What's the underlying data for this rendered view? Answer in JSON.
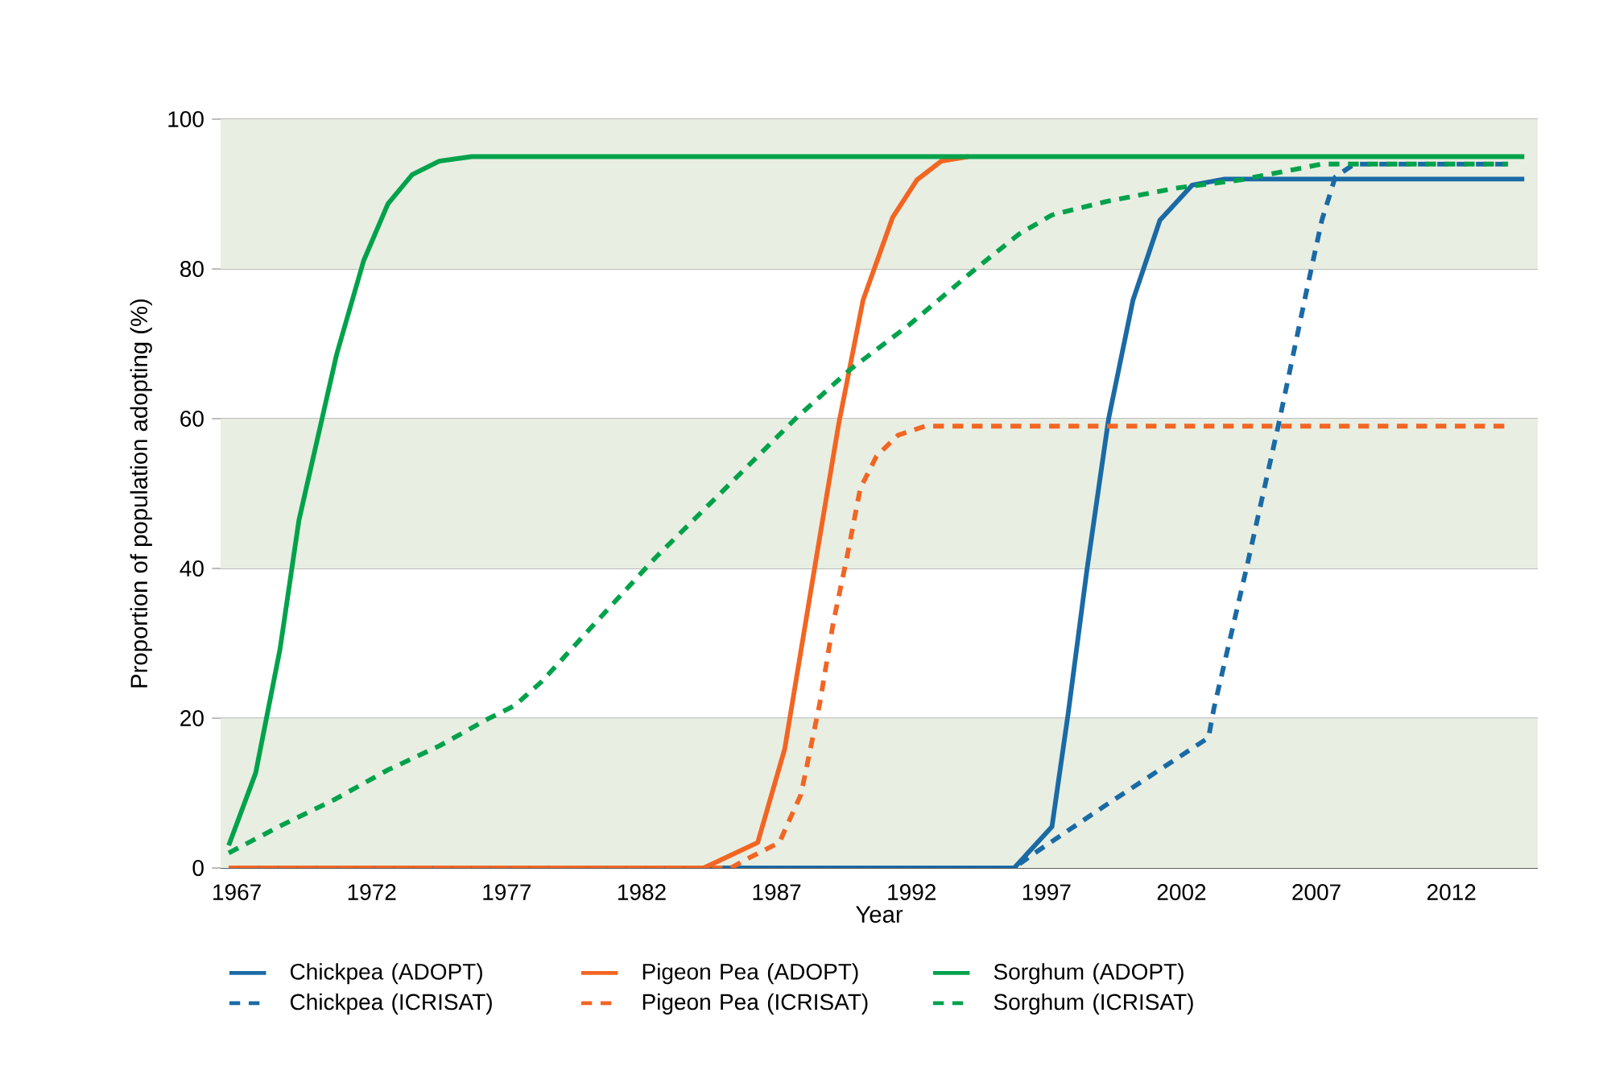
{
  "chart_data": {
    "type": "line",
    "xlabel": "Year",
    "ylabel": "Proportion of population adopting (%)",
    "xlim": [
      1966.4,
      2015.2
    ],
    "ylim": [
      0,
      100
    ],
    "xticks": [
      1967,
      1972,
      1977,
      1982,
      1987,
      1992,
      1997,
      2002,
      2007,
      2012
    ],
    "yticks": [
      0,
      20,
      40,
      60,
      80,
      100
    ],
    "grid": "y",
    "legend": "bottom",
    "marker": "none",
    "bands": [
      {
        "axis": "y",
        "from": 0,
        "to": 20,
        "color": "#e8eee2"
      },
      {
        "axis": "y",
        "from": 40,
        "to": 60,
        "color": "#e8eee2"
      },
      {
        "axis": "y",
        "from": 80,
        "to": 100,
        "color": "#e8eee2"
      }
    ],
    "series": [
      {
        "name": "Chickpea (ADOPT)",
        "color": "#1a6aa5",
        "line_style": "solid",
        "x": [
          1966.7,
          1995.2,
          1995.8,
          1997.2,
          1997.8,
          1998.5,
          1999.3,
          2000.2,
          2001.2,
          2002.4,
          2003.6,
          2014.7
        ],
        "values": [
          0,
          0,
          0,
          5.5,
          20.6,
          39.9,
          60,
          75.8,
          86.5,
          91.2,
          92,
          92
        ]
      },
      {
        "name": "Pigeon Pea (ADOPT)",
        "color": "#f26522",
        "line_style": "solid",
        "x": [
          1966.7,
          1984.3,
          1986.3,
          1987.3,
          1988.4,
          1989.3,
          1990.2,
          1991.3,
          1992.2,
          1993.1,
          1994.1
        ],
        "values": [
          0,
          0,
          3.4,
          15.9,
          39.9,
          59.3,
          75.8,
          86.9,
          91.9,
          94.4,
          95
        ]
      },
      {
        "name": "Sorghum (ADOPT)",
        "color": "#00a24b",
        "line_style": "solid",
        "x": [
          1966.7,
          1967.7,
          1968.6,
          1969.3,
          1970.7,
          1971.7,
          1972.6,
          1973.5,
          1974.5,
          1975.7,
          2014.7
        ],
        "values": [
          3,
          12.7,
          29.2,
          46.4,
          68.6,
          81.1,
          88.7,
          92.6,
          94.4,
          95,
          95
        ]
      },
      {
        "name": "Chickpea (ICRISAT)",
        "color": "#1a6aa5",
        "line_style": "dashed",
        "x": [
          1966.7,
          1995.8,
          1996.4,
          1999.2,
          2003.0,
          2003.2,
          2004.4,
          2005.6,
          2006.6,
          2007.2,
          2007.7,
          2008.4,
          2014.1
        ],
        "values": [
          0,
          0,
          1.6,
          8.4,
          17.4,
          21.3,
          39.9,
          59.3,
          76.5,
          86.5,
          92.3,
          94,
          94
        ]
      },
      {
        "name": "Pigeon Pea (ICRISAT)",
        "color": "#f26522",
        "line_style": "dashed",
        "x": [
          1966.7,
          1985.3,
          1985.9,
          1987.1,
          1987.9,
          1988.6,
          1989.1,
          1989.6,
          1990.1,
          1990.7,
          1991.5,
          1992.5,
          2014.0
        ],
        "values": [
          0,
          0,
          1.2,
          3.4,
          9.8,
          22,
          32.8,
          41.4,
          50.7,
          55,
          57.8,
          59,
          59
        ]
      },
      {
        "name": "Sorghum (ICRISAT)",
        "color": "#00a24b",
        "line_style": "dashed",
        "x": [
          1966.7,
          1968.6,
          1970.6,
          1972.6,
          1974.5,
          1976.3,
          1977.3,
          1978.3,
          1980.3,
          1982.5,
          1983.9,
          1985.3,
          1987.7,
          1989.7,
          1991.9,
          1994.4,
          1996.0,
          1997.2,
          1999.2,
          2001.8,
          2004.2,
          2007.2,
          2014.1
        ],
        "values": [
          2,
          5.6,
          9.1,
          13.1,
          16.3,
          19.9,
          21.7,
          24.9,
          32.8,
          41.4,
          46.4,
          51.4,
          60,
          66.5,
          72.5,
          80.1,
          84.7,
          87.2,
          89,
          90.8,
          91.9,
          94,
          94
        ]
      }
    ]
  }
}
